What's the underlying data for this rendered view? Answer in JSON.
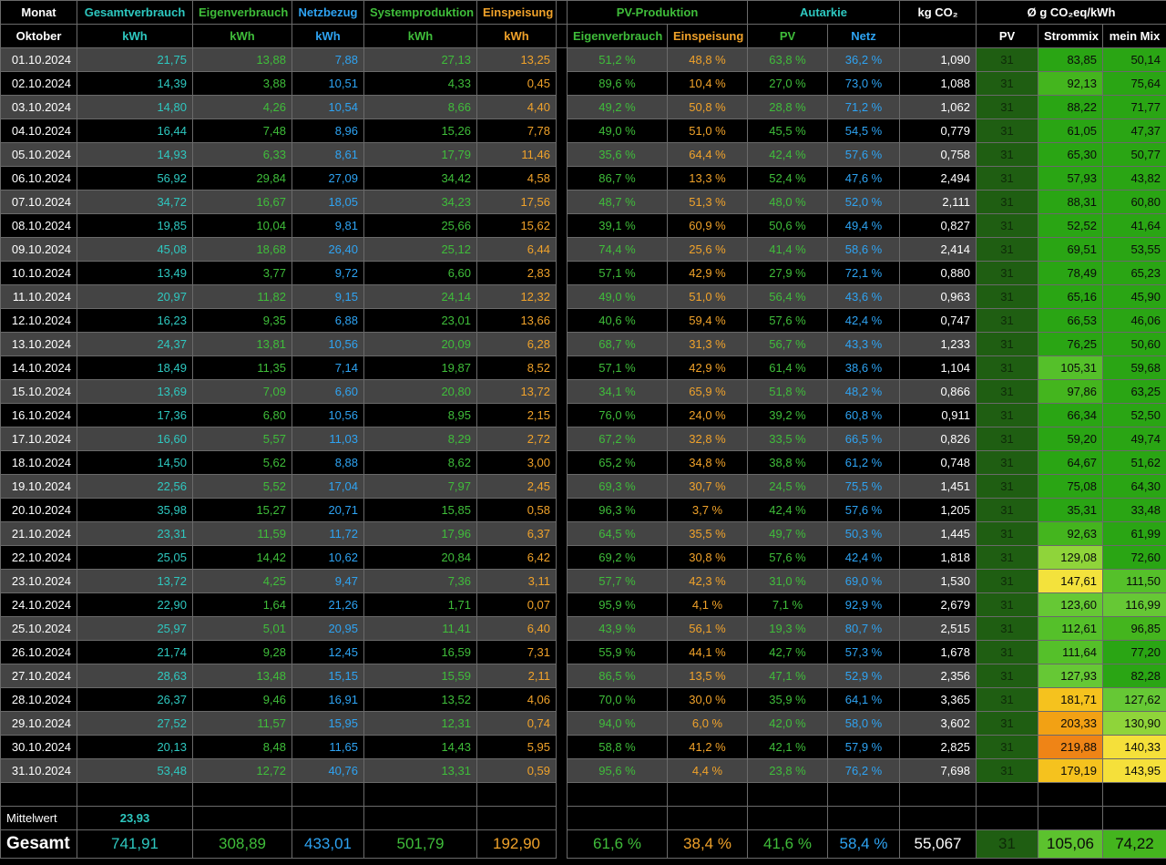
{
  "headers": {
    "monat": "Monat",
    "gesamtverbrauch": "Gesamtverbrauch",
    "eigenverbrauch": "Eigenverbrauch",
    "netzbezug": "Netzbezug",
    "systemproduktion": "Systemproduktion",
    "einspeisung": "Einspeisung",
    "pv_produktion": "PV-Produktion",
    "autarkie": "Autarkie",
    "kg_co2": "kg CO₂",
    "co2_kwh": "Ø g CO₂eq/kWh"
  },
  "subheaders": {
    "monat": "Oktober",
    "kwh": "kWh",
    "pv_eigen": "Eigenverbrauch",
    "pv_einsp": "Einspeisung",
    "aut_pv": "PV",
    "aut_netz": "Netz",
    "co2_pv": "PV",
    "co2_strommix": "Strommix",
    "co2_meinmix": "mein Mix"
  },
  "colors": {
    "teal": "#2ec8c0",
    "green": "#3fbd3a",
    "blue": "#2ea3f2",
    "orange": "#f0a22a"
  },
  "rows": [
    {
      "date": "01.10.2024",
      "gesamt": "21,75",
      "eigen": "13,88",
      "netz": "7,88",
      "sys": "27,13",
      "einsp": "13,25",
      "pv_eigen": "51,2 %",
      "pv_einsp": "48,8 %",
      "aut_pv": "63,8 %",
      "aut_netz": "36,2 %",
      "co2": "1,090",
      "pv": "31",
      "mix": "83,85",
      "mein": "50,14"
    },
    {
      "date": "02.10.2024",
      "gesamt": "14,39",
      "eigen": "3,88",
      "netz": "10,51",
      "sys": "4,33",
      "einsp": "0,45",
      "pv_eigen": "89,6 %",
      "pv_einsp": "10,4 %",
      "aut_pv": "27,0 %",
      "aut_netz": "73,0 %",
      "co2": "1,088",
      "pv": "31",
      "mix": "92,13",
      "mein": "75,64"
    },
    {
      "date": "03.10.2024",
      "gesamt": "14,80",
      "eigen": "4,26",
      "netz": "10,54",
      "sys": "8,66",
      "einsp": "4,40",
      "pv_eigen": "49,2 %",
      "pv_einsp": "50,8 %",
      "aut_pv": "28,8 %",
      "aut_netz": "71,2 %",
      "co2": "1,062",
      "pv": "31",
      "mix": "88,22",
      "mein": "71,77"
    },
    {
      "date": "04.10.2024",
      "gesamt": "16,44",
      "eigen": "7,48",
      "netz": "8,96",
      "sys": "15,26",
      "einsp": "7,78",
      "pv_eigen": "49,0 %",
      "pv_einsp": "51,0 %",
      "aut_pv": "45,5 %",
      "aut_netz": "54,5 %",
      "co2": "0,779",
      "pv": "31",
      "mix": "61,05",
      "mein": "47,37"
    },
    {
      "date": "05.10.2024",
      "gesamt": "14,93",
      "eigen": "6,33",
      "netz": "8,61",
      "sys": "17,79",
      "einsp": "11,46",
      "pv_eigen": "35,6 %",
      "pv_einsp": "64,4 %",
      "aut_pv": "42,4 %",
      "aut_netz": "57,6 %",
      "co2": "0,758",
      "pv": "31",
      "mix": "65,30",
      "mein": "50,77"
    },
    {
      "date": "06.10.2024",
      "gesamt": "56,92",
      "eigen": "29,84",
      "netz": "27,09",
      "sys": "34,42",
      "einsp": "4,58",
      "pv_eigen": "86,7 %",
      "pv_einsp": "13,3 %",
      "aut_pv": "52,4 %",
      "aut_netz": "47,6 %",
      "co2": "2,494",
      "pv": "31",
      "mix": "57,93",
      "mein": "43,82"
    },
    {
      "date": "07.10.2024",
      "gesamt": "34,72",
      "eigen": "16,67",
      "netz": "18,05",
      "sys": "34,23",
      "einsp": "17,56",
      "pv_eigen": "48,7 %",
      "pv_einsp": "51,3 %",
      "aut_pv": "48,0 %",
      "aut_netz": "52,0 %",
      "co2": "2,111",
      "pv": "31",
      "mix": "88,31",
      "mein": "60,80"
    },
    {
      "date": "08.10.2024",
      "gesamt": "19,85",
      "eigen": "10,04",
      "netz": "9,81",
      "sys": "25,66",
      "einsp": "15,62",
      "pv_eigen": "39,1 %",
      "pv_einsp": "60,9 %",
      "aut_pv": "50,6 %",
      "aut_netz": "49,4 %",
      "co2": "0,827",
      "pv": "31",
      "mix": "52,52",
      "mein": "41,64"
    },
    {
      "date": "09.10.2024",
      "gesamt": "45,08",
      "eigen": "18,68",
      "netz": "26,40",
      "sys": "25,12",
      "einsp": "6,44",
      "pv_eigen": "74,4 %",
      "pv_einsp": "25,6 %",
      "aut_pv": "41,4 %",
      "aut_netz": "58,6 %",
      "co2": "2,414",
      "pv": "31",
      "mix": "69,51",
      "mein": "53,55"
    },
    {
      "date": "10.10.2024",
      "gesamt": "13,49",
      "eigen": "3,77",
      "netz": "9,72",
      "sys": "6,60",
      "einsp": "2,83",
      "pv_eigen": "57,1 %",
      "pv_einsp": "42,9 %",
      "aut_pv": "27,9 %",
      "aut_netz": "72,1 %",
      "co2": "0,880",
      "pv": "31",
      "mix": "78,49",
      "mein": "65,23"
    },
    {
      "date": "11.10.2024",
      "gesamt": "20,97",
      "eigen": "11,82",
      "netz": "9,15",
      "sys": "24,14",
      "einsp": "12,32",
      "pv_eigen": "49,0 %",
      "pv_einsp": "51,0 %",
      "aut_pv": "56,4 %",
      "aut_netz": "43,6 %",
      "co2": "0,963",
      "pv": "31",
      "mix": "65,16",
      "mein": "45,90"
    },
    {
      "date": "12.10.2024",
      "gesamt": "16,23",
      "eigen": "9,35",
      "netz": "6,88",
      "sys": "23,01",
      "einsp": "13,66",
      "pv_eigen": "40,6 %",
      "pv_einsp": "59,4 %",
      "aut_pv": "57,6 %",
      "aut_netz": "42,4 %",
      "co2": "0,747",
      "pv": "31",
      "mix": "66,53",
      "mein": "46,06"
    },
    {
      "date": "13.10.2024",
      "gesamt": "24,37",
      "eigen": "13,81",
      "netz": "10,56",
      "sys": "20,09",
      "einsp": "6,28",
      "pv_eigen": "68,7 %",
      "pv_einsp": "31,3 %",
      "aut_pv": "56,7 %",
      "aut_netz": "43,3 %",
      "co2": "1,233",
      "pv": "31",
      "mix": "76,25",
      "mein": "50,60"
    },
    {
      "date": "14.10.2024",
      "gesamt": "18,49",
      "eigen": "11,35",
      "netz": "7,14",
      "sys": "19,87",
      "einsp": "8,52",
      "pv_eigen": "57,1 %",
      "pv_einsp": "42,9 %",
      "aut_pv": "61,4 %",
      "aut_netz": "38,6 %",
      "co2": "1,104",
      "pv": "31",
      "mix": "105,31",
      "mein": "59,68"
    },
    {
      "date": "15.10.2024",
      "gesamt": "13,69",
      "eigen": "7,09",
      "netz": "6,60",
      "sys": "20,80",
      "einsp": "13,72",
      "pv_eigen": "34,1 %",
      "pv_einsp": "65,9 %",
      "aut_pv": "51,8 %",
      "aut_netz": "48,2 %",
      "co2": "0,866",
      "pv": "31",
      "mix": "97,86",
      "mein": "63,25"
    },
    {
      "date": "16.10.2024",
      "gesamt": "17,36",
      "eigen": "6,80",
      "netz": "10,56",
      "sys": "8,95",
      "einsp": "2,15",
      "pv_eigen": "76,0 %",
      "pv_einsp": "24,0 %",
      "aut_pv": "39,2 %",
      "aut_netz": "60,8 %",
      "co2": "0,911",
      "pv": "31",
      "mix": "66,34",
      "mein": "52,50"
    },
    {
      "date": "17.10.2024",
      "gesamt": "16,60",
      "eigen": "5,57",
      "netz": "11,03",
      "sys": "8,29",
      "einsp": "2,72",
      "pv_eigen": "67,2 %",
      "pv_einsp": "32,8 %",
      "aut_pv": "33,5 %",
      "aut_netz": "66,5 %",
      "co2": "0,826",
      "pv": "31",
      "mix": "59,20",
      "mein": "49,74"
    },
    {
      "date": "18.10.2024",
      "gesamt": "14,50",
      "eigen": "5,62",
      "netz": "8,88",
      "sys": "8,62",
      "einsp": "3,00",
      "pv_eigen": "65,2 %",
      "pv_einsp": "34,8 %",
      "aut_pv": "38,8 %",
      "aut_netz": "61,2 %",
      "co2": "0,748",
      "pv": "31",
      "mix": "64,67",
      "mein": "51,62"
    },
    {
      "date": "19.10.2024",
      "gesamt": "22,56",
      "eigen": "5,52",
      "netz": "17,04",
      "sys": "7,97",
      "einsp": "2,45",
      "pv_eigen": "69,3 %",
      "pv_einsp": "30,7 %",
      "aut_pv": "24,5 %",
      "aut_netz": "75,5 %",
      "co2": "1,451",
      "pv": "31",
      "mix": "75,08",
      "mein": "64,30"
    },
    {
      "date": "20.10.2024",
      "gesamt": "35,98",
      "eigen": "15,27",
      "netz": "20,71",
      "sys": "15,85",
      "einsp": "0,58",
      "pv_eigen": "96,3 %",
      "pv_einsp": "3,7 %",
      "aut_pv": "42,4 %",
      "aut_netz": "57,6 %",
      "co2": "1,205",
      "pv": "31",
      "mix": "35,31",
      "mein": "33,48"
    },
    {
      "date": "21.10.2024",
      "gesamt": "23,31",
      "eigen": "11,59",
      "netz": "11,72",
      "sys": "17,96",
      "einsp": "6,37",
      "pv_eigen": "64,5 %",
      "pv_einsp": "35,5 %",
      "aut_pv": "49,7 %",
      "aut_netz": "50,3 %",
      "co2": "1,445",
      "pv": "31",
      "mix": "92,63",
      "mein": "61,99"
    },
    {
      "date": "22.10.2024",
      "gesamt": "25,05",
      "eigen": "14,42",
      "netz": "10,62",
      "sys": "20,84",
      "einsp": "6,42",
      "pv_eigen": "69,2 %",
      "pv_einsp": "30,8 %",
      "aut_pv": "57,6 %",
      "aut_netz": "42,4 %",
      "co2": "1,818",
      "pv": "31",
      "mix": "129,08",
      "mein": "72,60"
    },
    {
      "date": "23.10.2024",
      "gesamt": "13,72",
      "eigen": "4,25",
      "netz": "9,47",
      "sys": "7,36",
      "einsp": "3,11",
      "pv_eigen": "57,7 %",
      "pv_einsp": "42,3 %",
      "aut_pv": "31,0 %",
      "aut_netz": "69,0 %",
      "co2": "1,530",
      "pv": "31",
      "mix": "147,61",
      "mein": "111,50"
    },
    {
      "date": "24.10.2024",
      "gesamt": "22,90",
      "eigen": "1,64",
      "netz": "21,26",
      "sys": "1,71",
      "einsp": "0,07",
      "pv_eigen": "95,9 %",
      "pv_einsp": "4,1 %",
      "aut_pv": "7,1 %",
      "aut_netz": "92,9 %",
      "co2": "2,679",
      "pv": "31",
      "mix": "123,60",
      "mein": "116,99"
    },
    {
      "date": "25.10.2024",
      "gesamt": "25,97",
      "eigen": "5,01",
      "netz": "20,95",
      "sys": "11,41",
      "einsp": "6,40",
      "pv_eigen": "43,9 %",
      "pv_einsp": "56,1 %",
      "aut_pv": "19,3 %",
      "aut_netz": "80,7 %",
      "co2": "2,515",
      "pv": "31",
      "mix": "112,61",
      "mein": "96,85"
    },
    {
      "date": "26.10.2024",
      "gesamt": "21,74",
      "eigen": "9,28",
      "netz": "12,45",
      "sys": "16,59",
      "einsp": "7,31",
      "pv_eigen": "55,9 %",
      "pv_einsp": "44,1 %",
      "aut_pv": "42,7 %",
      "aut_netz": "57,3 %",
      "co2": "1,678",
      "pv": "31",
      "mix": "111,64",
      "mein": "77,20"
    },
    {
      "date": "27.10.2024",
      "gesamt": "28,63",
      "eigen": "13,48",
      "netz": "15,15",
      "sys": "15,59",
      "einsp": "2,11",
      "pv_eigen": "86,5 %",
      "pv_einsp": "13,5 %",
      "aut_pv": "47,1 %",
      "aut_netz": "52,9 %",
      "co2": "2,356",
      "pv": "31",
      "mix": "127,93",
      "mein": "82,28"
    },
    {
      "date": "28.10.2024",
      "gesamt": "26,37",
      "eigen": "9,46",
      "netz": "16,91",
      "sys": "13,52",
      "einsp": "4,06",
      "pv_eigen": "70,0 %",
      "pv_einsp": "30,0 %",
      "aut_pv": "35,9 %",
      "aut_netz": "64,1 %",
      "co2": "3,365",
      "pv": "31",
      "mix": "181,71",
      "mein": "127,62"
    },
    {
      "date": "29.10.2024",
      "gesamt": "27,52",
      "eigen": "11,57",
      "netz": "15,95",
      "sys": "12,31",
      "einsp": "0,74",
      "pv_eigen": "94,0 %",
      "pv_einsp": "6,0 %",
      "aut_pv": "42,0 %",
      "aut_netz": "58,0 %",
      "co2": "3,602",
      "pv": "31",
      "mix": "203,33",
      "mein": "130,90"
    },
    {
      "date": "30.10.2024",
      "gesamt": "20,13",
      "eigen": "8,48",
      "netz": "11,65",
      "sys": "14,43",
      "einsp": "5,95",
      "pv_eigen": "58,8 %",
      "pv_einsp": "41,2 %",
      "aut_pv": "42,1 %",
      "aut_netz": "57,9 %",
      "co2": "2,825",
      "pv": "31",
      "mix": "219,88",
      "mein": "140,33"
    },
    {
      "date": "31.10.2024",
      "gesamt": "53,48",
      "eigen": "12,72",
      "netz": "40,76",
      "sys": "13,31",
      "einsp": "0,59",
      "pv_eigen": "95,6 %",
      "pv_einsp": "4,4 %",
      "aut_pv": "23,8 %",
      "aut_netz": "76,2 %",
      "co2": "7,698",
      "pv": "31",
      "mix": "179,19",
      "mein": "143,95"
    }
  ],
  "mittelwert": {
    "label": "Mittelwert",
    "gesamt": "23,93"
  },
  "gesamt": {
    "label": "Gesamt",
    "gesamt": "741,91",
    "eigen": "308,89",
    "netz": "433,01",
    "sys": "501,79",
    "einsp": "192,90",
    "pv_eigen": "61,6 %",
    "pv_einsp": "38,4 %",
    "aut_pv": "41,6 %",
    "aut_netz": "58,4 %",
    "co2": "55,067",
    "pv": "31",
    "mix": "105,06",
    "mein": "74,22"
  }
}
